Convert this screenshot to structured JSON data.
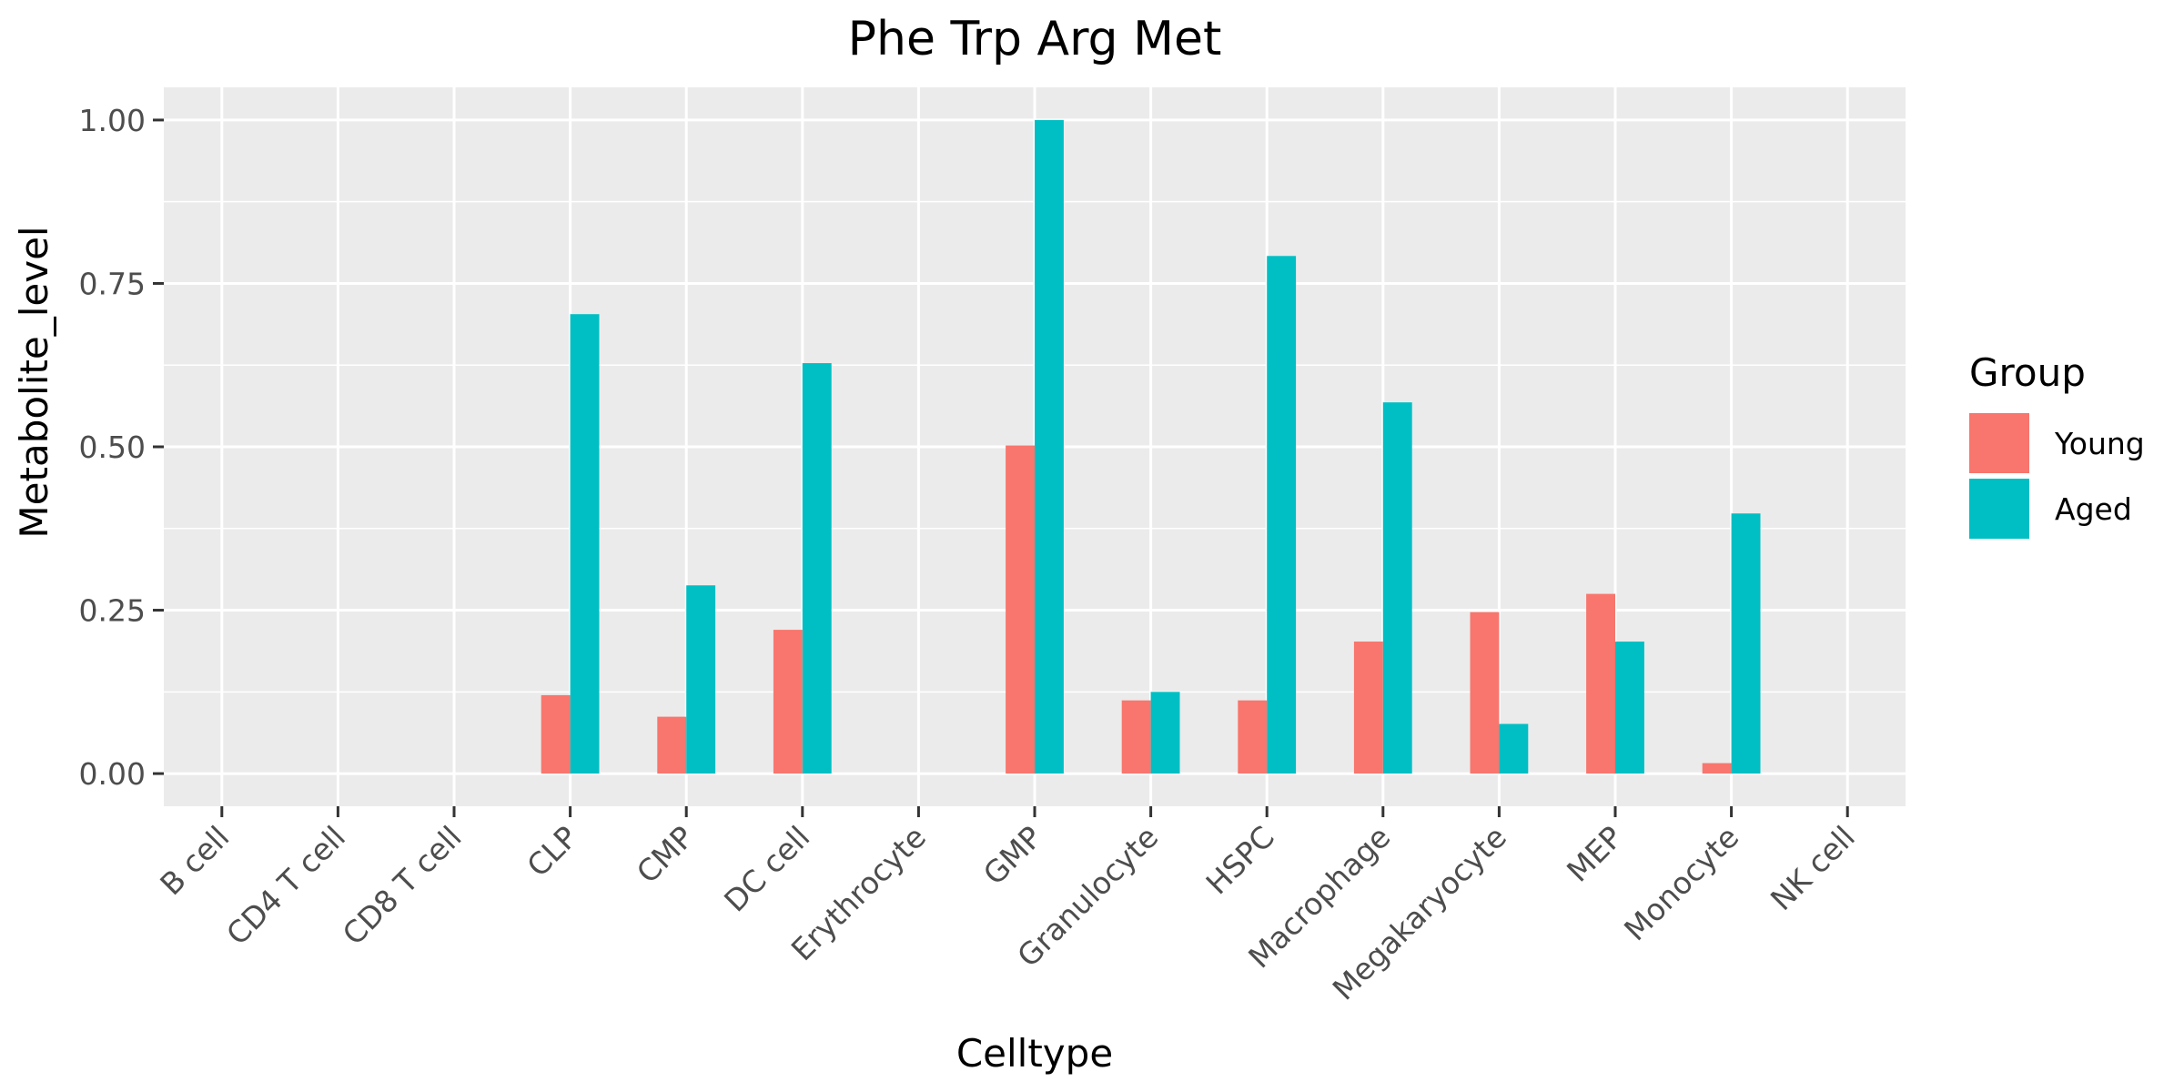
{
  "chart_data": {
    "type": "bar",
    "title": "Phe Trp Arg Met",
    "xlabel": "Celltype",
    "ylabel": "Metabolite_level",
    "ylim": [
      -0.05,
      1.05
    ],
    "yticks": [
      0,
      0.25,
      0.5,
      0.75,
      1.0
    ],
    "ytick_labels": [
      "0.00",
      "0.25",
      "0.50",
      "0.75",
      "1.00"
    ],
    "grid": true,
    "legend_position": "right",
    "legend_title": "Group",
    "categories": [
      "B cell",
      "CD4 T cell",
      "CD8 T cell",
      "CLP",
      "CMP",
      "DC cell",
      "Erythrocyte",
      "GMP",
      "Granulocyte",
      "HSPC",
      "Macrophage",
      "Megakaryocyte",
      "MEP",
      "Monocyte",
      "NK cell"
    ],
    "series": [
      {
        "name": "Young",
        "color": "#F8766D",
        "values": [
          0,
          0,
          0,
          0.12,
          0.087,
          0.22,
          0,
          0.502,
          0.112,
          0.112,
          0.202,
          0.247,
          0.275,
          0.016,
          0
        ]
      },
      {
        "name": "Aged",
        "color": "#00BFC4",
        "values": [
          0,
          0,
          0,
          0.703,
          0.288,
          0.628,
          0,
          1.0,
          0.125,
          0.792,
          0.568,
          0.076,
          0.202,
          0.398,
          0
        ]
      }
    ],
    "panel_background": "#EBEBEB",
    "gridline_color": "#FFFFFF"
  }
}
